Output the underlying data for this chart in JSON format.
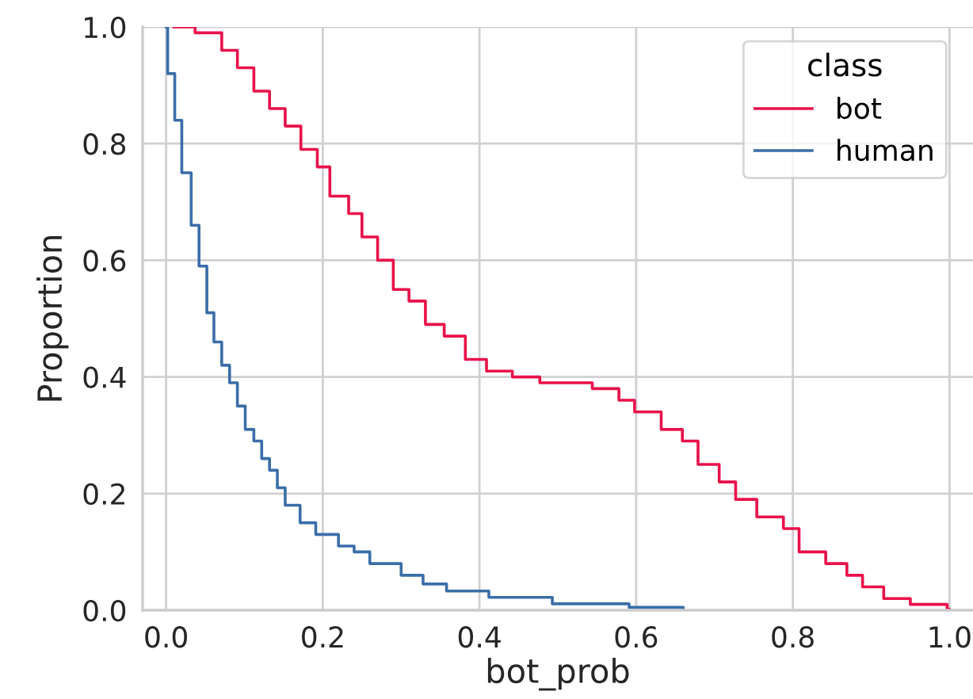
{
  "chart_data": {
    "type": "step",
    "xlabel": "bot_prob",
    "ylabel": "Proportion",
    "legend_title": "class",
    "xlim": [
      -0.03,
      1.03
    ],
    "ylim": [
      0,
      1
    ],
    "xticks": [
      {
        "value": 0,
        "label": "0.0"
      },
      0.2,
      0.4,
      0.6,
      0.8,
      {
        "value": 1,
        "label": "1.0"
      }
    ],
    "yticks": [
      {
        "value": 0,
        "label": "0.0"
      },
      0.2,
      0.4,
      0.6,
      0.8,
      {
        "value": 1,
        "label": "1.0"
      }
    ],
    "grid": true,
    "legend": "top right",
    "series": [
      {
        "name": "bot",
        "color": "#e8114a",
        "x": [
          0.01,
          0.037,
          0.071,
          0.091,
          0.112,
          0.132,
          0.152,
          0.172,
          0.193,
          0.209,
          0.233,
          0.25,
          0.27,
          0.29,
          0.31,
          0.331,
          0.355,
          0.382,
          0.409,
          0.442,
          0.477,
          0.544,
          0.578,
          0.598,
          0.632,
          0.659,
          0.679,
          0.706,
          0.727,
          0.754,
          0.788,
          0.808,
          0.842,
          0.869,
          0.889,
          0.916,
          0.95,
          0.997,
          1.0
        ],
        "values": [
          1.0,
          0.99,
          0.96,
          0.93,
          0.89,
          0.86,
          0.83,
          0.79,
          0.76,
          0.71,
          0.68,
          0.64,
          0.6,
          0.55,
          0.53,
          0.49,
          0.47,
          0.43,
          0.41,
          0.4,
          0.39,
          0.38,
          0.36,
          0.34,
          0.31,
          0.29,
          0.25,
          0.22,
          0.19,
          0.16,
          0.14,
          0.1,
          0.08,
          0.06,
          0.04,
          0.02,
          0.01,
          0.002,
          0.0
        ]
      },
      {
        "name": "human",
        "color": "#3a6ea8",
        "x": [
          0.0,
          0.002,
          0.011,
          0.02,
          0.032,
          0.042,
          0.052,
          0.061,
          0.071,
          0.081,
          0.091,
          0.101,
          0.112,
          0.122,
          0.132,
          0.142,
          0.152,
          0.171,
          0.191,
          0.22,
          0.24,
          0.26,
          0.3,
          0.328,
          0.358,
          0.412,
          0.493,
          0.591,
          0.66
        ],
        "values": [
          1.0,
          0.92,
          0.84,
          0.75,
          0.66,
          0.59,
          0.51,
          0.46,
          0.42,
          0.39,
          0.35,
          0.31,
          0.29,
          0.26,
          0.24,
          0.21,
          0.18,
          0.15,
          0.13,
          0.11,
          0.1,
          0.08,
          0.06,
          0.045,
          0.033,
          0.022,
          0.011,
          0.005,
          0.0
        ]
      }
    ]
  }
}
